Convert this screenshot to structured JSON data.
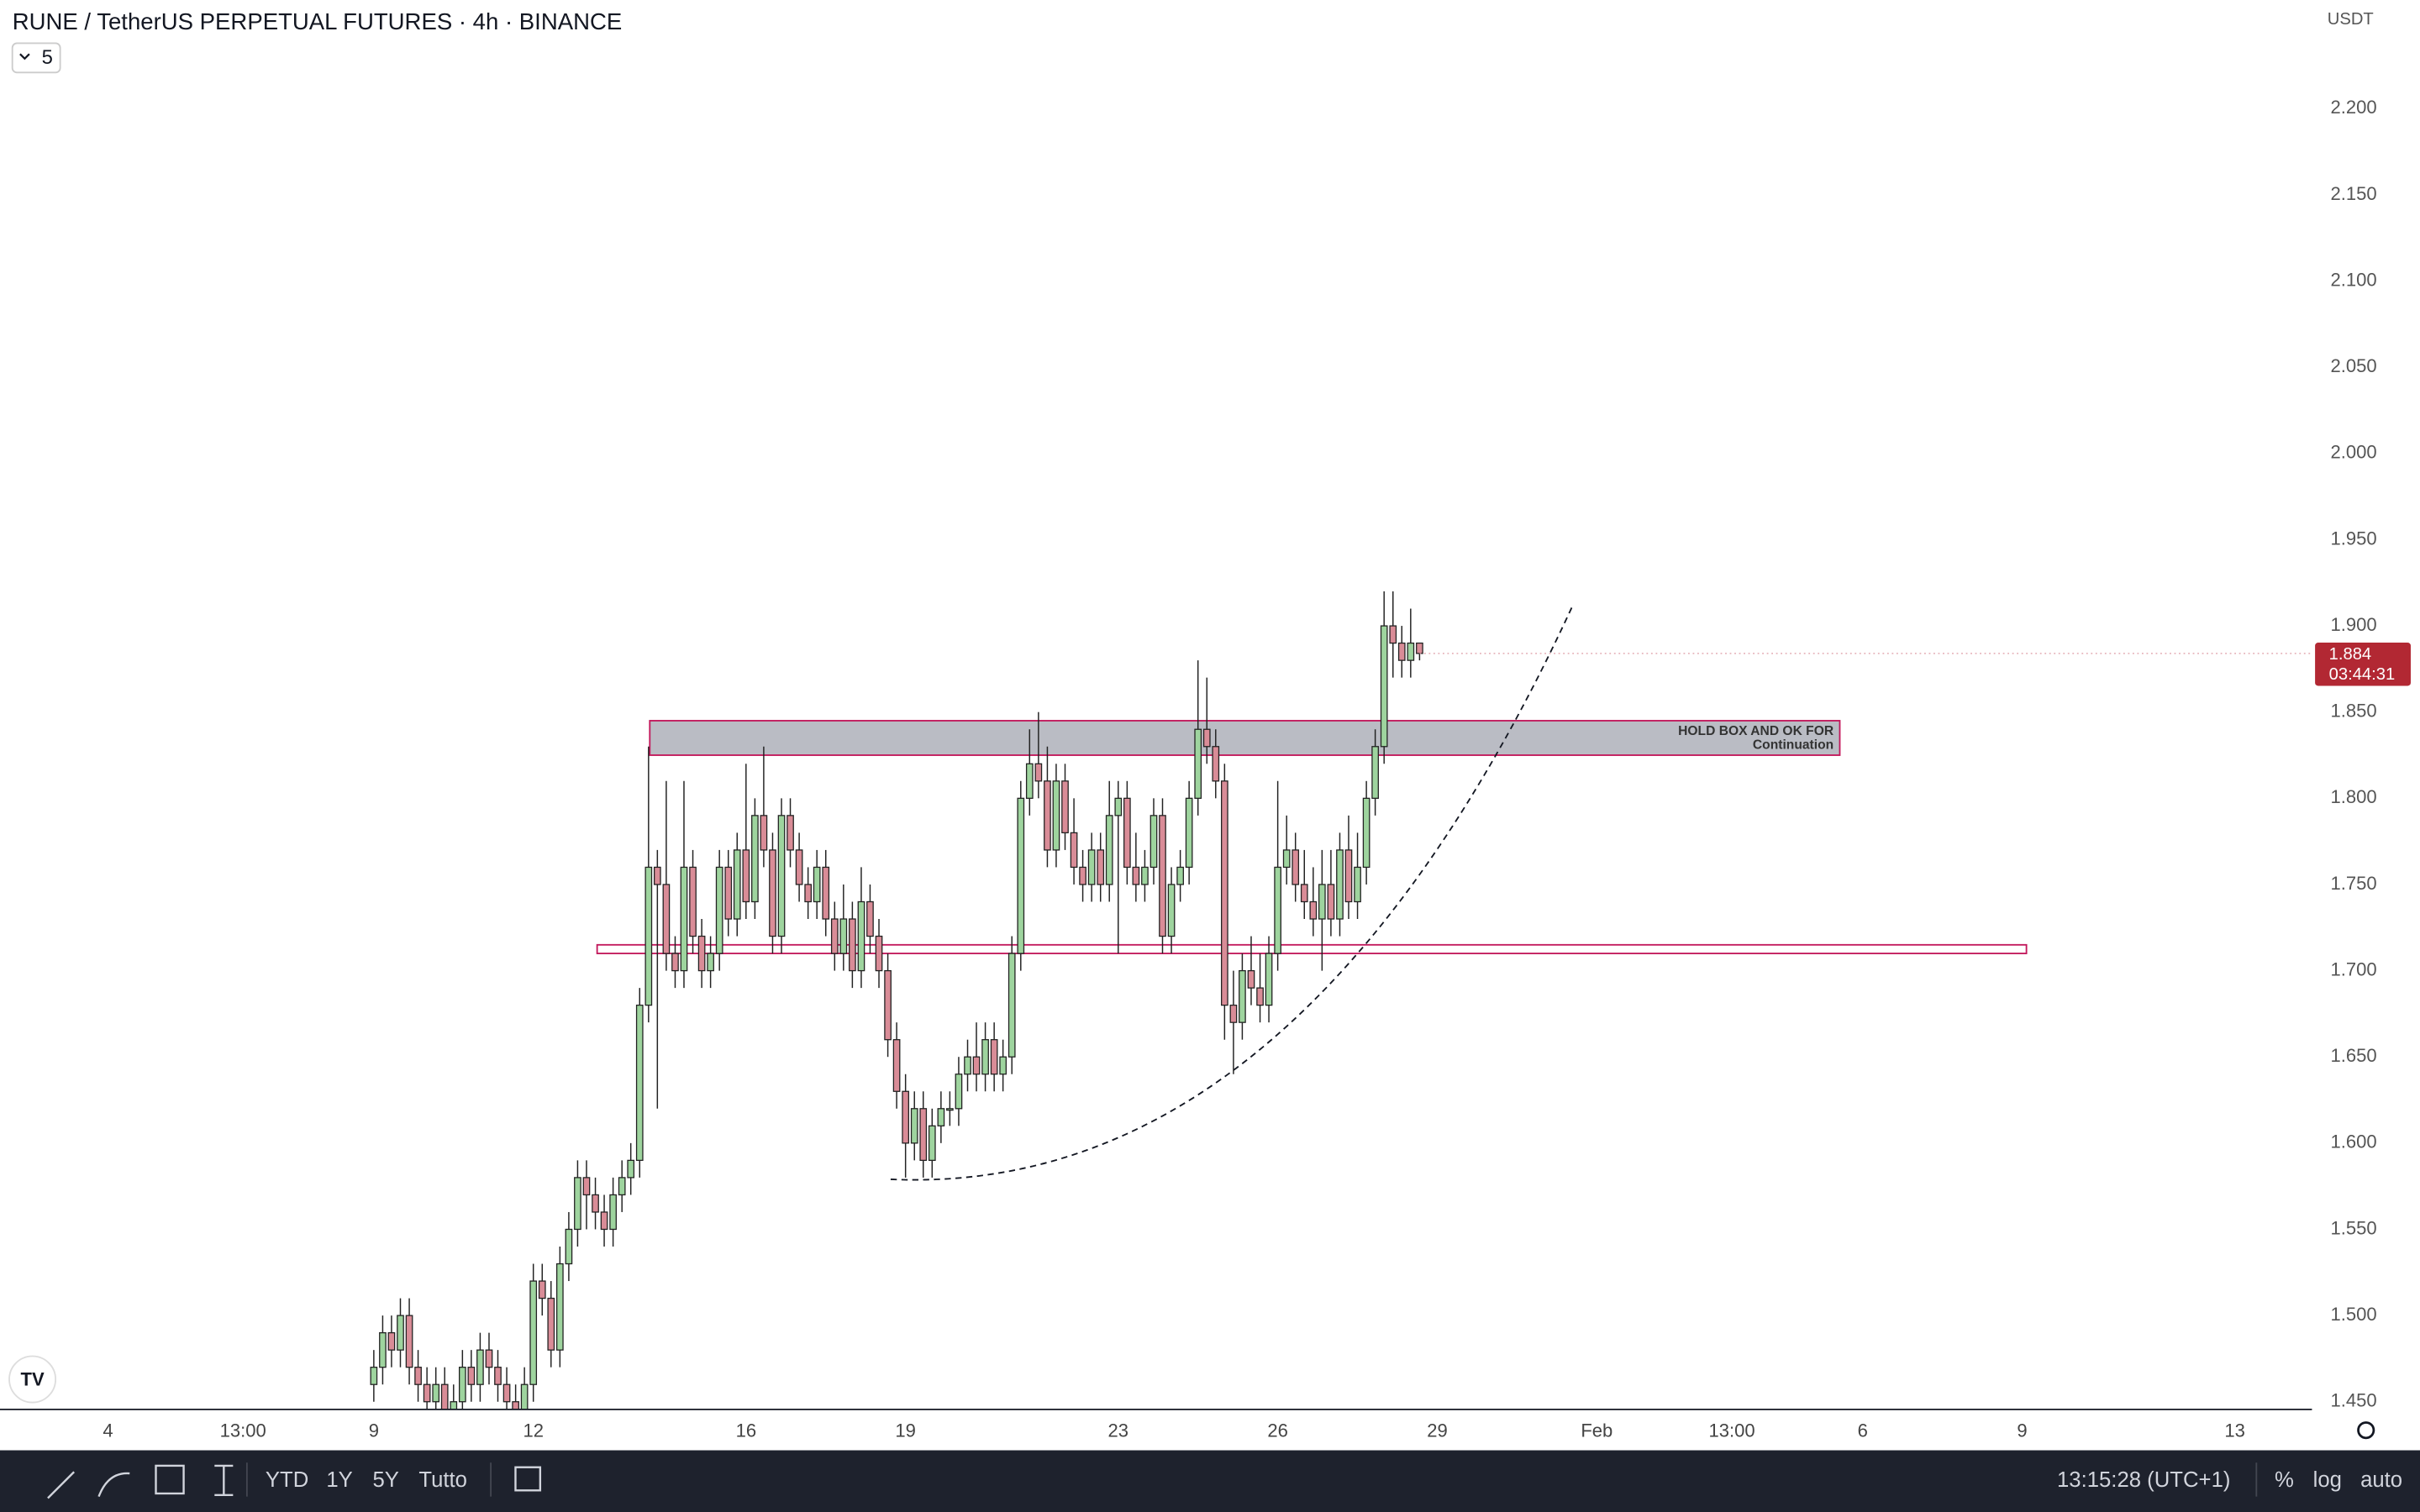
{
  "chart_data": {
    "type": "candlestick",
    "title": "RUNE / TetherUS PERPETUAL FUTURES · 4h · BINANCE",
    "currency": "USDT",
    "log_scale": false,
    "grid": false,
    "up_color": "#9ed49e",
    "down_color": "#d98c97",
    "xlim": [
      -2.03,
      41.45
    ],
    "xticks": [
      {
        "value": 0,
        "label": "4"
      },
      {
        "value": 2.54,
        "label": "13:00"
      },
      {
        "value": 5,
        "label": "9"
      },
      {
        "value": 8,
        "label": "12"
      },
      {
        "value": 12,
        "label": "16"
      },
      {
        "value": 15,
        "label": "19"
      },
      {
        "value": 19,
        "label": "23"
      },
      {
        "value": 22,
        "label": "26"
      },
      {
        "value": 25,
        "label": "29"
      },
      {
        "value": 28,
        "label": "Feb"
      },
      {
        "value": 30.54,
        "label": "13:00"
      },
      {
        "value": 33,
        "label": "6"
      },
      {
        "value": 36,
        "label": "9"
      },
      {
        "value": 40,
        "label": "13"
      }
    ],
    "ylim": [
      1.446,
      2.263
    ],
    "yticks": [
      {
        "value": 1.45,
        "label": "1.450"
      },
      {
        "value": 1.5,
        "label": "1.500"
      },
      {
        "value": 1.55,
        "label": "1.550"
      },
      {
        "value": 1.6,
        "label": "1.600"
      },
      {
        "value": 1.65,
        "label": "1.650"
      },
      {
        "value": 1.7,
        "label": "1.700"
      },
      {
        "value": 1.75,
        "label": "1.750"
      },
      {
        "value": 1.8,
        "label": "1.800"
      },
      {
        "value": 1.85,
        "label": "1.850"
      },
      {
        "value": 1.9,
        "label": "1.900"
      },
      {
        "value": 1.95,
        "label": "1.950"
      },
      {
        "value": 2.0,
        "label": "2.000"
      },
      {
        "value": 2.05,
        "label": "2.050"
      },
      {
        "value": 2.1,
        "label": "2.100"
      },
      {
        "value": 2.15,
        "label": "2.150"
      },
      {
        "value": 2.2,
        "label": "2.200"
      }
    ],
    "x": [
      5,
      5.167,
      5.333,
      5.5,
      5.667,
      5.833,
      6,
      6.167,
      6.333,
      6.5,
      6.667,
      6.833,
      7,
      7.167,
      7.333,
      7.5,
      7.667,
      7.833,
      8,
      8.167,
      8.333,
      8.5,
      8.667,
      8.833,
      9,
      9.167,
      9.333,
      9.5,
      9.667,
      9.833,
      10,
      10.167,
      10.333,
      10.5,
      10.667,
      10.833,
      11,
      11.167,
      11.333,
      11.5,
      11.667,
      11.833,
      12,
      12.167,
      12.333,
      12.5,
      12.667,
      12.833,
      13,
      13.167,
      13.333,
      13.5,
      13.667,
      13.833,
      14,
      14.167,
      14.333,
      14.5,
      14.667,
      14.833,
      15,
      15.167,
      15.333,
      15.5,
      15.667,
      15.833,
      16,
      16.167,
      16.333,
      16.5,
      16.667,
      16.833,
      17,
      17.167,
      17.333,
      17.5,
      17.667,
      17.833,
      18,
      18.167,
      18.333,
      18.5,
      18.667,
      18.833,
      19,
      19.167,
      19.333,
      19.5,
      19.667,
      19.833,
      20,
      20.167,
      20.333,
      20.5,
      20.667,
      20.833,
      21,
      21.167,
      21.333,
      21.5,
      21.667,
      21.833,
      22,
      22.167,
      22.333,
      22.5,
      22.667,
      22.833,
      23,
      23.167,
      23.333,
      23.5,
      23.667,
      23.833,
      24,
      24.167,
      24.333,
      24.5,
      24.667
    ],
    "open": [
      1.46,
      1.47,
      1.49,
      1.48,
      1.5,
      1.47,
      1.46,
      1.45,
      1.46,
      1.44,
      1.45,
      1.47,
      1.46,
      1.48,
      1.47,
      1.46,
      1.45,
      1.44,
      1.46,
      1.52,
      1.51,
      1.48,
      1.53,
      1.55,
      1.58,
      1.57,
      1.56,
      1.55,
      1.57,
      1.58,
      1.59,
      1.68,
      1.76,
      1.75,
      1.71,
      1.7,
      1.76,
      1.72,
      1.7,
      1.71,
      1.76,
      1.73,
      1.77,
      1.74,
      1.79,
      1.77,
      1.72,
      1.79,
      1.77,
      1.75,
      1.74,
      1.76,
      1.73,
      1.71,
      1.73,
      1.7,
      1.74,
      1.72,
      1.7,
      1.66,
      1.63,
      1.6,
      1.62,
      1.59,
      1.61,
      1.62,
      1.62,
      1.64,
      1.65,
      1.64,
      1.66,
      1.64,
      1.65,
      1.71,
      1.8,
      1.82,
      1.81,
      1.77,
      1.81,
      1.78,
      1.76,
      1.75,
      1.77,
      1.75,
      1.79,
      1.8,
      1.76,
      1.75,
      1.76,
      1.79,
      1.72,
      1.75,
      1.76,
      1.8,
      1.84,
      1.83,
      1.81,
      1.68,
      1.67,
      1.7,
      1.69,
      1.68,
      1.71,
      1.76,
      1.77,
      1.75,
      1.74,
      1.73,
      1.75,
      1.73,
      1.77,
      1.74,
      1.76,
      1.8,
      1.83,
      1.9,
      1.89,
      1.88,
      1.89
    ],
    "high": [
      1.48,
      1.5,
      1.5,
      1.51,
      1.51,
      1.48,
      1.47,
      1.47,
      1.47,
      1.46,
      1.48,
      1.48,
      1.49,
      1.49,
      1.48,
      1.47,
      1.46,
      1.47,
      1.53,
      1.53,
      1.52,
      1.54,
      1.56,
      1.59,
      1.59,
      1.58,
      1.57,
      1.58,
      1.59,
      1.6,
      1.69,
      1.83,
      1.77,
      1.81,
      1.72,
      1.81,
      1.77,
      1.73,
      1.72,
      1.77,
      1.77,
      1.78,
      1.82,
      1.8,
      1.83,
      1.78,
      1.8,
      1.8,
      1.78,
      1.76,
      1.77,
      1.77,
      1.74,
      1.75,
      1.74,
      1.76,
      1.75,
      1.73,
      1.71,
      1.67,
      1.64,
      1.63,
      1.63,
      1.62,
      1.63,
      1.63,
      1.65,
      1.66,
      1.67,
      1.67,
      1.67,
      1.66,
      1.72,
      1.81,
      1.84,
      1.85,
      1.83,
      1.82,
      1.82,
      1.8,
      1.77,
      1.78,
      1.78,
      1.81,
      1.81,
      1.81,
      1.78,
      1.77,
      1.8,
      1.8,
      1.76,
      1.77,
      1.81,
      1.88,
      1.87,
      1.84,
      1.82,
      1.7,
      1.71,
      1.72,
      1.71,
      1.72,
      1.81,
      1.79,
      1.78,
      1.77,
      1.76,
      1.77,
      1.77,
      1.78,
      1.79,
      1.78,
      1.81,
      1.84,
      1.92,
      1.92,
      1.9,
      1.91,
      1.89
    ],
    "low": [
      1.45,
      1.46,
      1.47,
      1.47,
      1.46,
      1.45,
      1.44,
      1.44,
      1.43,
      1.43,
      1.44,
      1.45,
      1.45,
      1.46,
      1.45,
      1.44,
      1.43,
      1.43,
      1.45,
      1.5,
      1.47,
      1.47,
      1.52,
      1.54,
      1.55,
      1.55,
      1.54,
      1.54,
      1.56,
      1.57,
      1.58,
      1.67,
      1.62,
      1.7,
      1.69,
      1.69,
      1.71,
      1.69,
      1.69,
      1.7,
      1.72,
      1.72,
      1.73,
      1.73,
      1.76,
      1.71,
      1.71,
      1.76,
      1.74,
      1.73,
      1.73,
      1.72,
      1.7,
      1.7,
      1.69,
      1.69,
      1.71,
      1.69,
      1.65,
      1.62,
      1.58,
      1.59,
      1.58,
      1.58,
      1.6,
      1.61,
      1.61,
      1.63,
      1.63,
      1.63,
      1.63,
      1.63,
      1.64,
      1.7,
      1.79,
      1.8,
      1.76,
      1.76,
      1.77,
      1.75,
      1.74,
      1.74,
      1.74,
      1.74,
      1.71,
      1.75,
      1.74,
      1.74,
      1.75,
      1.71,
      1.71,
      1.74,
      1.75,
      1.79,
      1.82,
      1.8,
      1.66,
      1.64,
      1.66,
      1.68,
      1.67,
      1.67,
      1.7,
      1.75,
      1.74,
      1.73,
      1.72,
      1.7,
      1.72,
      1.72,
      1.73,
      1.73,
      1.75,
      1.79,
      1.82,
      1.87,
      1.87,
      1.87,
      1.88
    ],
    "close": [
      1.47,
      1.49,
      1.48,
      1.5,
      1.47,
      1.46,
      1.45,
      1.46,
      1.44,
      1.45,
      1.47,
      1.46,
      1.48,
      1.47,
      1.46,
      1.45,
      1.44,
      1.46,
      1.52,
      1.51,
      1.48,
      1.53,
      1.55,
      1.58,
      1.57,
      1.56,
      1.55,
      1.57,
      1.58,
      1.59,
      1.68,
      1.76,
      1.75,
      1.71,
      1.7,
      1.76,
      1.72,
      1.7,
      1.71,
      1.76,
      1.73,
      1.77,
      1.74,
      1.79,
      1.77,
      1.72,
      1.79,
      1.77,
      1.75,
      1.74,
      1.76,
      1.73,
      1.71,
      1.73,
      1.7,
      1.74,
      1.72,
      1.7,
      1.66,
      1.63,
      1.6,
      1.62,
      1.59,
      1.61,
      1.62,
      1.62,
      1.64,
      1.65,
      1.64,
      1.66,
      1.64,
      1.65,
      1.71,
      1.8,
      1.82,
      1.81,
      1.77,
      1.81,
      1.78,
      1.76,
      1.75,
      1.77,
      1.75,
      1.79,
      1.8,
      1.76,
      1.75,
      1.76,
      1.79,
      1.72,
      1.75,
      1.76,
      1.8,
      1.84,
      1.83,
      1.81,
      1.68,
      1.67,
      1.7,
      1.69,
      1.68,
      1.71,
      1.76,
      1.77,
      1.75,
      1.74,
      1.73,
      1.75,
      1.73,
      1.77,
      1.74,
      1.76,
      1.8,
      1.83,
      1.9,
      1.89,
      1.88,
      1.89,
      1.884
    ],
    "zones": [
      {
        "text": [
          "HOLD BOX AND OK FOR",
          "Continuation"
        ],
        "x": [
          10.19,
          32.57
        ],
        "y": [
          1.825,
          1.845
        ],
        "fill": "#b2b5be",
        "color": "#c2185b"
      },
      {
        "x": [
          9.2,
          36.08
        ],
        "y": [
          1.71,
          1.715
        ],
        "fill": "#ffffff",
        "color": "#c2185b"
      }
    ],
    "curve": {
      "x": [
        14.72,
        21.77,
        27.55
      ],
      "y": [
        1.579,
        1.657,
        1.912
      ]
    }
  },
  "ui": {
    "interval_count": "5",
    "countdown": "03:44:31",
    "ranges": [
      "YTD",
      "1Y",
      "5Y",
      "Tutto"
    ],
    "clock": "13:15:28 (UTC+1)",
    "options": [
      "%",
      "log",
      "auto"
    ]
  }
}
